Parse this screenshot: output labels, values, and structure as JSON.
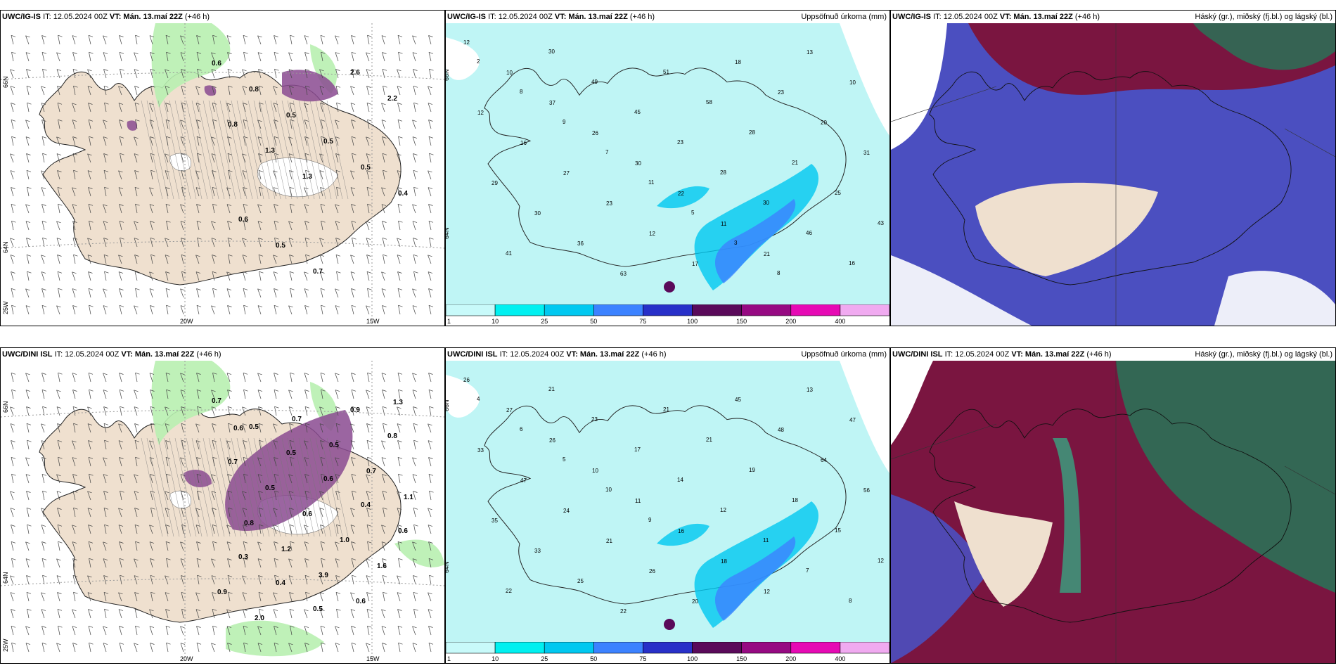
{
  "rows": [
    {
      "model": "UWC/IG-IS",
      "panels": [
        {
          "model": "UWC/IG-IS",
          "it": "IT: 12.05.2024 00Z",
          "vt": "VT: Mán. 13.maí 22Z",
          "lead": "(+46 h)",
          "right_title": ""
        },
        {
          "model": "UWC/IG-IS",
          "it": "IT: 12.05.2024 00Z",
          "vt": "VT: Mán. 13.maí 22Z",
          "lead": "(+46 h)",
          "right_title": "Uppsöfnuð úrkoma (mm)"
        },
        {
          "model": "UWC/IG-IS",
          "it": "IT: 12.05.2024 00Z",
          "vt": "VT: Mán. 13.maí 22Z",
          "lead": "(+46 h)",
          "right_title": "Háský (gr.), miðský (fj.bl.) og lágský (bl.)"
        }
      ],
      "precip_labels": [
        "12",
        "10",
        "37",
        "26",
        "30",
        "22",
        "11",
        "21",
        "13",
        "10",
        "12",
        "16",
        "27",
        "23",
        "12",
        "17",
        "18",
        "23",
        "20",
        "31",
        "29",
        "30",
        "36",
        "63",
        "51",
        "58",
        "28",
        "21",
        "25",
        "43",
        "41",
        "30",
        "49",
        "45",
        "23",
        "28",
        "30",
        "46",
        "16",
        "2",
        "8",
        "9",
        "7",
        "11",
        "5",
        "3",
        "8"
      ],
      "snow_labels": [
        "0.6",
        "0.8",
        "0.5",
        "0.5",
        "0.5",
        "0.4",
        "0.6",
        "0.5",
        "0.7",
        "2.6",
        "2.2",
        "0.8",
        "1.3",
        "1.3"
      ]
    },
    {
      "model": "UWC/DINI ISL",
      "panels": [
        {
          "model": "UWC/DINI ISL",
          "it": "IT: 12.05.2024 00Z",
          "vt": "VT: Mán. 13.maí 22Z",
          "lead": "(+46 h)",
          "right_title": ""
        },
        {
          "model": "UWC/DINI ISL",
          "it": "IT: 12.05.2024 00Z",
          "vt": "VT: Mán. 13.maí 22Z",
          "lead": "(+46 h)",
          "right_title": "Uppsöfnuð úrkoma (mm)"
        },
        {
          "model": "UWC/DINI ISL",
          "it": "IT: 12.05.2024 00Z",
          "vt": "VT: Mán. 13.maí 22Z",
          "lead": "(+46 h)",
          "right_title": "Háský (gr.), miðský (fj.bl.) og lágský (bl.)"
        }
      ],
      "precip_labels": [
        "26",
        "27",
        "26",
        "10",
        "11",
        "16",
        "18",
        "12",
        "13",
        "47",
        "33",
        "47",
        "24",
        "21",
        "26",
        "20",
        "45",
        "48",
        "64",
        "56",
        "35",
        "33",
        "25",
        "22",
        "21",
        "21",
        "19",
        "18",
        "15",
        "12",
        "22",
        "21",
        "23",
        "17",
        "14",
        "12",
        "11",
        "7",
        "8",
        "4",
        "6",
        "5",
        "10",
        "9"
      ],
      "snow_labels": [
        "0.7",
        "0.5",
        "0.5",
        "0.6",
        "0.4",
        "0.6",
        "0.3",
        "0.4",
        "0.5",
        "0.9",
        "0.8",
        "0.7",
        "0.5",
        "0.6",
        "1.0",
        "1.6",
        "0.9",
        "2.0",
        "0.7",
        "0.5",
        "0.7",
        "1.1",
        "0.8",
        "1.2",
        "3.9",
        "0.6",
        "1.3",
        "0.6"
      ]
    }
  ],
  "axis": {
    "lon_labels": [
      "20W",
      "15W"
    ],
    "lat_labels": [
      "66N",
      "64N",
      "25W"
    ]
  },
  "legend_ticks": [
    "1",
    "10",
    "25",
    "50",
    "75",
    "100",
    "150",
    "200",
    "400"
  ],
  "legend_colors": [
    "#c8fafa",
    "#00f0f0",
    "#00c8f0",
    "#3c82ff",
    "#2830c8",
    "#5a0a5a",
    "#960a82",
    "#e60ab4",
    "#f0aaf0"
  ],
  "colors": {
    "land": "#efe0cf",
    "sea_precip": "#bff5f5",
    "snow_green": "#b8efb0",
    "snow_purple": "#8a4a90",
    "cloud_low": "#4b4fc0",
    "cloud_mid": "#7a1540",
    "cloud_high": "#2f6b55"
  }
}
